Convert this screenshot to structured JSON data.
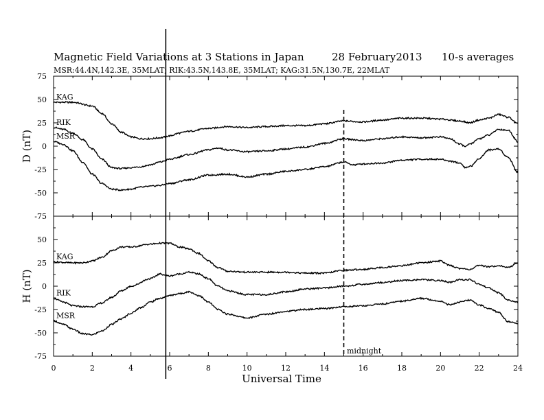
{
  "chart_data": {
    "type": "line",
    "title": "Magnetic Field Variations at 3 Stations in Japan",
    "date": "28 February2013",
    "averaging": "10-s averages",
    "subtitle": "MSR:44.4N,142.3E, 35MLAT;  RIK:43.5N,143.8E, 35MLAT;  KAG:31.5N,130.7E, 22MLAT",
    "xlabel": "Universal Time",
    "xlim": [
      0,
      24
    ],
    "xticks": [
      "0",
      "2",
      "4",
      "6",
      "8",
      "10",
      "12",
      "14",
      "16",
      "18",
      "20",
      "22",
      "24"
    ],
    "markers": [
      {
        "x": 5.8,
        "style": "solid",
        "label": ""
      },
      {
        "x": 15.0,
        "style": "dashed",
        "label": "midnight"
      }
    ],
    "panels": [
      {
        "ylabel": "D (nT)",
        "ylim": [
          -75,
          75
        ],
        "yticks": [
          "75",
          "50",
          "25",
          "0",
          "-25",
          "-50",
          "-75"
        ],
        "series": [
          {
            "name": "KAG",
            "x": [
              0,
              1,
              2,
              2.5,
              3,
              3.5,
              4,
              4.5,
              5,
              5.5,
              6,
              6.5,
              7,
              8,
              9,
              10,
              11,
              12,
              13,
              14,
              15,
              16,
              17,
              18,
              19,
              20,
              21,
              21.5,
              22,
              22.5,
              23,
              23.5,
              24
            ],
            "values": [
              47,
              47,
              43,
              35,
              24,
              15,
              10,
              8,
              8,
              9,
              11,
              14,
              16,
              19,
              21,
              20,
              21,
              22,
              22,
              24,
              27,
              26,
              28,
              30,
              30,
              29,
              27,
              25,
              28,
              30,
              34,
              31,
              24
            ]
          },
          {
            "name": "RIK",
            "x": [
              0,
              0.5,
              1,
              1.5,
              2,
              2.5,
              3,
              3.5,
              4,
              4.5,
              5,
              5.5,
              6,
              7,
              8,
              8.5,
              9,
              10,
              11,
              12,
              13,
              14,
              15,
              15.5,
              16,
              17,
              18,
              19,
              20,
              20.5,
              21,
              21.3,
              21.6,
              22,
              22.5,
              23,
              23.5,
              24
            ],
            "values": [
              20,
              18,
              14,
              7,
              -3,
              -14,
              -23,
              -24,
              -23,
              -22,
              -20,
              -17,
              -14,
              -9,
              -4,
              -2,
              -4,
              -6,
              -5,
              -3,
              -1,
              3,
              8,
              7,
              6,
              8,
              10,
              9,
              10,
              8,
              2,
              0,
              3,
              8,
              12,
              18,
              17,
              5
            ]
          },
          {
            "name": "MSR",
            "x": [
              0,
              0.5,
              1,
              1.5,
              2,
              2.5,
              3,
              3.5,
              4,
              4.5,
              5,
              5.5,
              6,
              7,
              8,
              9,
              10,
              11,
              12,
              13,
              14,
              15,
              15.5,
              16,
              17,
              18,
              19,
              20,
              20.5,
              21,
              21.3,
              21.6,
              22,
              22.5,
              23,
              23.5,
              24
            ],
            "values": [
              5,
              2,
              -5,
              -17,
              -30,
              -40,
              -46,
              -47,
              -46,
              -44,
              -43,
              -42,
              -40,
              -36,
              -31,
              -30,
              -33,
              -30,
              -27,
              -25,
              -22,
              -17,
              -20,
              -19,
              -18,
              -15,
              -14,
              -14,
              -16,
              -18,
              -23,
              -21,
              -13,
              -4,
              -3,
              -12,
              -28
            ]
          }
        ]
      },
      {
        "ylabel": "H (nT)",
        "ylim": [
          -75,
          75
        ],
        "yticks": [
          "75",
          "50",
          "25",
          "0",
          "-25",
          "-50",
          "-75"
        ],
        "series": [
          {
            "name": "KAG",
            "x": [
              0,
              1,
              1.5,
              2,
              2.5,
              3,
              3.5,
              4,
              5,
              5.5,
              6,
              6.5,
              7,
              7.5,
              8,
              8.5,
              9,
              10,
              11,
              12,
              13,
              14,
              15,
              16,
              17,
              18,
              19,
              20,
              20.5,
              21,
              21.5,
              22,
              22.5,
              23,
              23.5,
              24
            ],
            "values": [
              26,
              25,
              25,
              27,
              31,
              38,
              42,
              42,
              45,
              46,
              46,
              42,
              40,
              35,
              27,
              20,
              16,
              15,
              15,
              15,
              14,
              14,
              17,
              18,
              20,
              22,
              25,
              27,
              22,
              19,
              18,
              22,
              21,
              22,
              20,
              25
            ]
          },
          {
            "name": "RIK",
            "x": [
              0,
              0.5,
              1,
              1.5,
              2,
              2.5,
              3,
              3.5,
              4,
              5,
              5.5,
              6,
              6.5,
              7,
              7.5,
              8,
              8.5,
              9,
              10,
              11,
              12,
              13,
              14,
              15,
              16,
              17,
              18,
              19,
              20,
              20.5,
              21,
              21.5,
              22,
              22.5,
              23,
              23.5,
              24
            ],
            "values": [
              -13,
              -17,
              -21,
              -22,
              -22,
              -18,
              -12,
              -5,
              0,
              8,
              13,
              11,
              13,
              15,
              13,
              8,
              0,
              -5,
              -9,
              -9,
              -6,
              -3,
              -2,
              0,
              2,
              4,
              6,
              7,
              6,
              4,
              7,
              7,
              2,
              -2,
              -7,
              -15,
              -17
            ]
          },
          {
            "name": "MSR",
            "x": [
              0,
              0.5,
              1,
              1.5,
              2,
              2.5,
              3,
              3.5,
              4,
              4.5,
              5,
              5.5,
              6,
              6.5,
              7,
              7.5,
              8,
              8.5,
              9,
              10,
              11,
              12,
              13,
              14,
              15,
              16,
              17,
              18,
              19,
              20,
              20.5,
              21,
              21.5,
              22,
              22.5,
              23,
              23.5,
              24
            ],
            "values": [
              -37,
              -41,
              -46,
              -51,
              -52,
              -48,
              -41,
              -35,
              -29,
              -23,
              -17,
              -13,
              -10,
              -8,
              -6,
              -10,
              -17,
              -25,
              -30,
              -34,
              -30,
              -27,
              -25,
              -24,
              -22,
              -21,
              -19,
              -16,
              -13,
              -16,
              -20,
              -17,
              -15,
              -20,
              -24,
              -28,
              -38,
              -40
            ]
          }
        ]
      }
    ]
  }
}
